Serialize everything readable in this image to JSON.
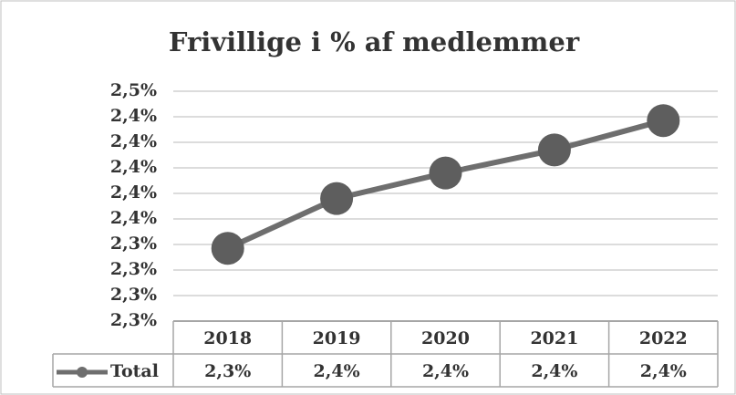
{
  "chart_data": {
    "type": "line",
    "title": "Frivillige i % af medlemmer",
    "categories": [
      "2018",
      "2019",
      "2020",
      "2021",
      "2022"
    ],
    "series": [
      {
        "name": "Total",
        "color": "#6e6e6e",
        "values": [
          2.337,
          2.376,
          2.396,
          2.414,
          2.437
        ],
        "value_labels": [
          "2,3%",
          "2,4%",
          "2,4%",
          "2,4%",
          "2,4%"
        ]
      }
    ],
    "ylim": [
      2.28,
      2.46
    ],
    "yticks": [
      {
        "value": 2.28,
        "label": "2,3%"
      },
      {
        "value": 2.3,
        "label": "2,3%"
      },
      {
        "value": 2.32,
        "label": "2,3%"
      },
      {
        "value": 2.34,
        "label": "2,3%"
      },
      {
        "value": 2.36,
        "label": "2,4%"
      },
      {
        "value": 2.38,
        "label": "2,4%"
      },
      {
        "value": 2.4,
        "label": "2,4%"
      },
      {
        "value": 2.42,
        "label": "2,4%"
      },
      {
        "value": 2.44,
        "label": "2,4%"
      },
      {
        "value": 2.46,
        "label": "2,5%"
      }
    ],
    "grid": true
  }
}
